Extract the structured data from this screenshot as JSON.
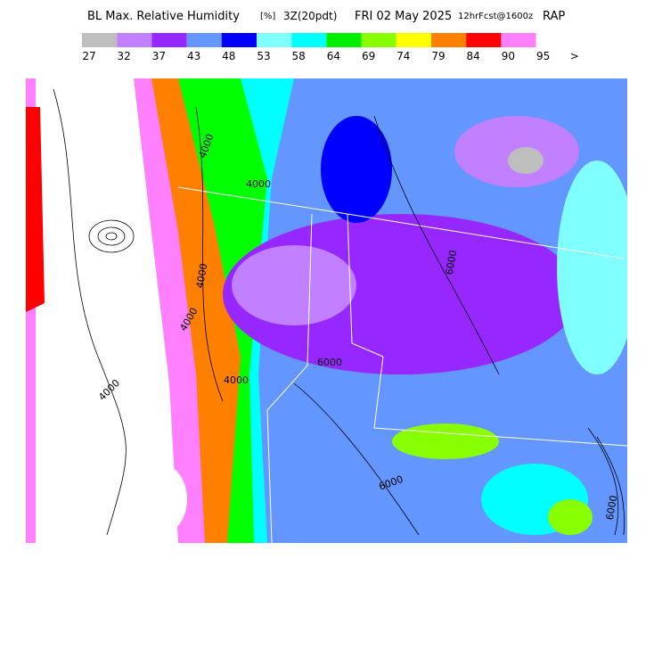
{
  "header": {
    "title": "BL Max. Relative Humidity",
    "units": "[%]",
    "valid": "3Z(20pdt)",
    "date": "FRI 02 May 2025",
    "forecast": "12hrFcst@1600z",
    "model": "RAP"
  },
  "colorbar": {
    "colors": [
      "#bebebe",
      "#c080ff",
      "#9628ff",
      "#6496ff",
      "#0000ff",
      "#80ffff",
      "#00ffff",
      "#00ee00",
      "#88ff00",
      "#ffff00",
      "#ff8000",
      "#ff0000",
      "#ff80ff"
    ],
    "ticks": [
      27,
      32,
      37,
      43,
      48,
      53,
      58,
      64,
      69,
      74,
      79,
      84,
      90,
      95
    ],
    "overflow_marker": ">"
  },
  "map": {
    "contour_labels": [
      "4000",
      "4000",
      "4000",
      "4000",
      "4000",
      "4000",
      "6000",
      "6000",
      "6000",
      "6000"
    ]
  }
}
